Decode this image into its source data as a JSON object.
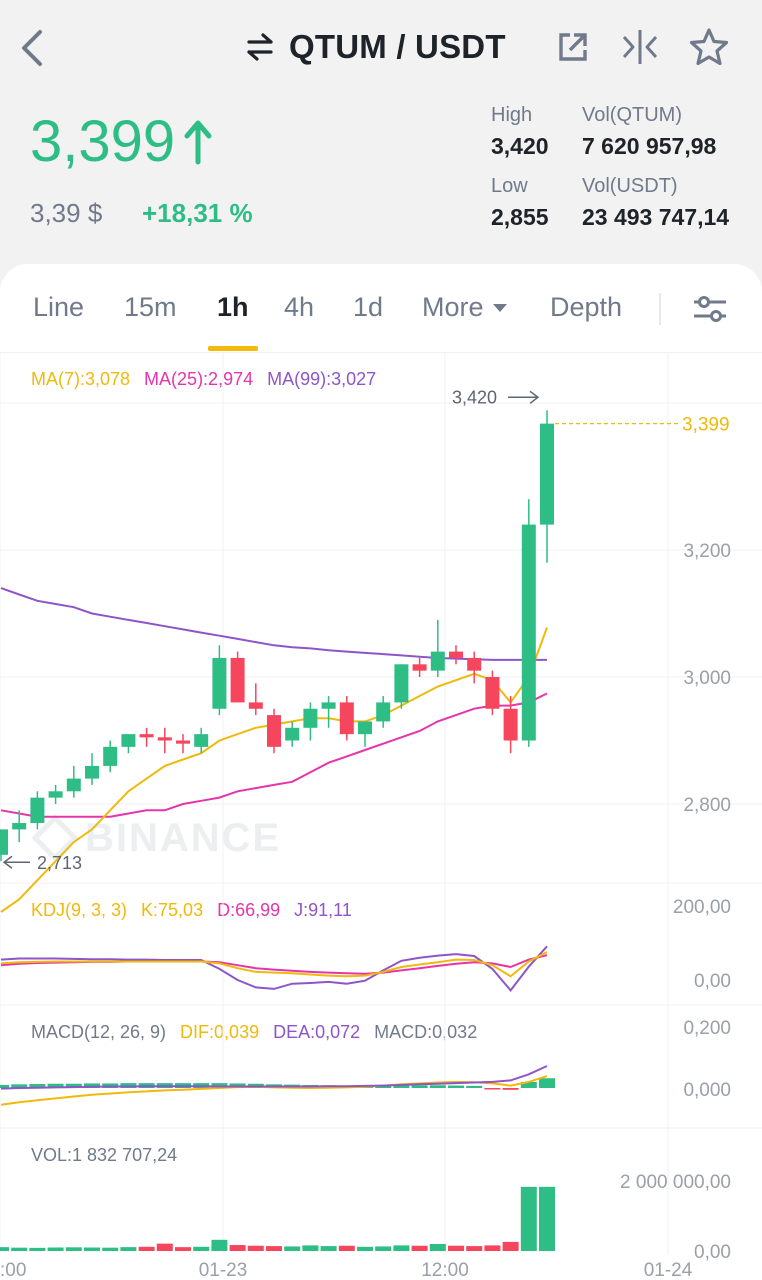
{
  "header": {
    "title": "QTUM / USDT",
    "swap_icon": "swap-arrows-icon",
    "back_icon": "chevron-left-icon",
    "share_icon": "external-link-icon",
    "compare_icon": "split-compare-icon",
    "favorite_icon": "star-outline-icon"
  },
  "ticker": {
    "price": "3,399",
    "direction_icon": "arrow-up-icon",
    "fiat_price": "3,39 $",
    "change_pct": "+18,31 %",
    "high_label": "High",
    "high": "3,420",
    "low_label": "Low",
    "low": "2,855",
    "vol_base_label": "Vol(QTUM)",
    "vol_base": "7 620 957,98",
    "vol_quote_label": "Vol(USDT)",
    "vol_quote": "23 493 747,14"
  },
  "tabs": [
    {
      "label": "Line"
    },
    {
      "label": "15m"
    },
    {
      "label": "1h",
      "active": true
    },
    {
      "label": "4h"
    },
    {
      "label": "1d"
    },
    {
      "label": "More"
    },
    {
      "label": "Depth"
    }
  ],
  "settings_icon": "sliders-icon",
  "colors": {
    "up": "#2ebd85",
    "down": "#f6465d",
    "ma7": "#f0b90b",
    "ma25": "#e535ab",
    "ma99": "#8e55c9",
    "accent": "#f0b90b"
  },
  "main_chart": {
    "legend": {
      "ma7": "MA(7):3,078",
      "ma25": "MA(25):2,974",
      "ma99": "MA(99):3,027"
    },
    "y_ticks": [
      "3,200",
      "3,000",
      "2,800"
    ],
    "y_tick_values": [
      3.2,
      3.0,
      2.8
    ],
    "current_price_label": "3,399",
    "current_price_value": 3.399,
    "high_marker": "3,420",
    "high_marker_value": 3.42,
    "low_marker": "2,713",
    "low_marker_value": 2.713,
    "watermark": "BINANCE"
  },
  "kdj": {
    "label": "KDJ(9, 3, 3)",
    "k": "K:75,03",
    "d": "D:66,99",
    "j": "J:91,11",
    "y_ticks": [
      "200,00",
      "0,00"
    ]
  },
  "macd": {
    "label": "MACD(12, 26, 9)",
    "dif": "DIF:0,039",
    "dea": "DEA:0,072",
    "macd": "MACD:0,032",
    "y_ticks": [
      "0,200",
      "0,000"
    ]
  },
  "volume": {
    "label": "VOL:1 832 707,24",
    "y_ticks": [
      "2 000 000,00",
      "0,00"
    ]
  },
  "x_ticks": [
    ":00",
    "01-23",
    "12:00",
    "01-24"
  ],
  "chart_data": {
    "type": "candlestick",
    "interval": "1h",
    "note_series": "approximate OHLC read off chart",
    "candles": [
      {
        "o": 2.72,
        "h": 2.76,
        "l": 2.71,
        "c": 2.76
      },
      {
        "o": 2.76,
        "h": 2.79,
        "l": 2.74,
        "c": 2.77
      },
      {
        "o": 2.77,
        "h": 2.82,
        "l": 2.76,
        "c": 2.81
      },
      {
        "o": 2.81,
        "h": 2.83,
        "l": 2.8,
        "c": 2.82
      },
      {
        "o": 2.82,
        "h": 2.86,
        "l": 2.81,
        "c": 2.84
      },
      {
        "o": 2.84,
        "h": 2.88,
        "l": 2.83,
        "c": 2.86
      },
      {
        "o": 2.86,
        "h": 2.9,
        "l": 2.85,
        "c": 2.89
      },
      {
        "o": 2.89,
        "h": 2.91,
        "l": 2.88,
        "c": 2.91
      },
      {
        "o": 2.91,
        "h": 2.92,
        "l": 2.89,
        "c": 2.905
      },
      {
        "o": 2.905,
        "h": 2.92,
        "l": 2.88,
        "c": 2.9
      },
      {
        "o": 2.9,
        "h": 2.91,
        "l": 2.88,
        "c": 2.895
      },
      {
        "o": 2.89,
        "h": 2.92,
        "l": 2.88,
        "c": 2.91
      },
      {
        "o": 2.95,
        "h": 3.05,
        "l": 2.94,
        "c": 3.03
      },
      {
        "o": 3.03,
        "h": 3.04,
        "l": 2.96,
        "c": 2.96
      },
      {
        "o": 2.96,
        "h": 2.99,
        "l": 2.94,
        "c": 2.95
      },
      {
        "o": 2.94,
        "h": 2.95,
        "l": 2.88,
        "c": 2.89
      },
      {
        "o": 2.9,
        "h": 2.93,
        "l": 2.89,
        "c": 2.92
      },
      {
        "o": 2.92,
        "h": 2.96,
        "l": 2.9,
        "c": 2.95
      },
      {
        "o": 2.95,
        "h": 2.97,
        "l": 2.92,
        "c": 2.96
      },
      {
        "o": 2.96,
        "h": 2.97,
        "l": 2.9,
        "c": 2.91
      },
      {
        "o": 2.91,
        "h": 2.93,
        "l": 2.89,
        "c": 2.93
      },
      {
        "o": 2.93,
        "h": 2.97,
        "l": 2.92,
        "c": 2.96
      },
      {
        "o": 2.96,
        "h": 3.02,
        "l": 2.95,
        "c": 3.02
      },
      {
        "o": 3.02,
        "h": 3.03,
        "l": 3.0,
        "c": 3.01
      },
      {
        "o": 3.01,
        "h": 3.09,
        "l": 3.0,
        "c": 3.04
      },
      {
        "o": 3.04,
        "h": 3.05,
        "l": 3.02,
        "c": 3.03
      },
      {
        "o": 3.03,
        "h": 3.04,
        "l": 2.99,
        "c": 3.01
      },
      {
        "o": 3.0,
        "h": 3.01,
        "l": 2.94,
        "c": 2.95
      },
      {
        "o": 2.95,
        "h": 2.97,
        "l": 2.88,
        "c": 2.9
      },
      {
        "o": 2.9,
        "h": 3.28,
        "l": 2.89,
        "c": 3.24
      },
      {
        "o": 3.24,
        "h": 3.42,
        "l": 3.18,
        "c": 3.399
      }
    ],
    "ma7": [
      2.63,
      2.65,
      2.68,
      2.71,
      2.74,
      2.76,
      2.79,
      2.82,
      2.84,
      2.86,
      2.87,
      2.88,
      2.9,
      2.91,
      2.92,
      2.925,
      2.93,
      2.935,
      2.935,
      2.93,
      2.93,
      2.94,
      2.955,
      2.97,
      2.985,
      2.995,
      3.005,
      2.995,
      2.96,
      3.0,
      3.078
    ],
    "ma25": [
      2.79,
      2.785,
      2.78,
      2.78,
      2.78,
      2.78,
      2.78,
      2.785,
      2.79,
      2.79,
      2.8,
      2.805,
      2.81,
      2.82,
      2.825,
      2.83,
      2.835,
      2.85,
      2.865,
      2.875,
      2.885,
      2.895,
      2.905,
      2.915,
      2.93,
      2.94,
      2.95,
      2.955,
      2.955,
      2.96,
      2.974
    ],
    "ma99": [
      3.14,
      3.13,
      3.12,
      3.115,
      3.11,
      3.1,
      3.095,
      3.09,
      3.085,
      3.08,
      3.075,
      3.07,
      3.065,
      3.06,
      3.055,
      3.05,
      3.047,
      3.045,
      3.042,
      3.04,
      3.038,
      3.036,
      3.034,
      3.032,
      3.03,
      3.029,
      3.028,
      3.027,
      3.027,
      3.027,
      3.027
    ],
    "kdj_k": [
      45,
      48,
      49,
      50,
      50,
      50,
      50,
      50,
      50,
      50,
      50,
      50,
      45,
      32,
      22,
      20,
      18,
      15,
      12,
      10,
      12,
      22,
      35,
      42,
      48,
      55,
      54,
      40,
      10,
      50,
      75.03
    ],
    "kdj_d": [
      40,
      44,
      46,
      47,
      48,
      49,
      49,
      50,
      50,
      50,
      50,
      50,
      48,
      40,
      32,
      28,
      25,
      22,
      20,
      18,
      17,
      20,
      26,
      32,
      38,
      44,
      48,
      45,
      35,
      55,
      66.99
    ],
    "kdj_j": [
      55,
      58,
      58,
      58,
      57,
      56,
      56,
      55,
      55,
      54,
      54,
      54,
      30,
      0,
      -20,
      -24,
      -10,
      -8,
      -5,
      -10,
      -2,
      26,
      52,
      60,
      66,
      70,
      65,
      30,
      -28,
      36,
      91.11
    ],
    "macd_dif": [
      -0.055,
      -0.047,
      -0.04,
      -0.034,
      -0.028,
      -0.022,
      -0.018,
      -0.014,
      -0.011,
      -0.008,
      -0.006,
      -0.003,
      0.0,
      0.003,
      0.004,
      0.002,
      0.001,
      0.0,
      0.001,
      0.002,
      0.004,
      0.008,
      0.012,
      0.015,
      0.018,
      0.02,
      0.019,
      0.015,
      0.008,
      0.02,
      0.039
    ],
    "macd_dea": [
      -0.002,
      0.0,
      0.001,
      0.002,
      0.003,
      0.004,
      0.005,
      0.005,
      0.006,
      0.006,
      0.006,
      0.006,
      0.005,
      0.005,
      0.005,
      0.005,
      0.005,
      0.005,
      0.006,
      0.006,
      0.007,
      0.008,
      0.01,
      0.012,
      0.014,
      0.016,
      0.018,
      0.02,
      0.025,
      0.045,
      0.072
    ],
    "macd_hist": [
      0.01,
      0.012,
      0.013,
      0.014,
      0.014,
      0.015,
      0.015,
      0.016,
      0.016,
      0.016,
      0.016,
      0.016,
      0.016,
      0.015,
      0.014,
      0.012,
      0.011,
      0.01,
      0.009,
      0.008,
      0.008,
      0.008,
      0.008,
      0.009,
      0.009,
      0.008,
      0.007,
      -0.004,
      -0.006,
      0.02,
      0.032
    ],
    "macd_hist_up": [
      true,
      true,
      true,
      true,
      true,
      true,
      true,
      true,
      true,
      true,
      true,
      true,
      true,
      true,
      true,
      true,
      true,
      true,
      true,
      true,
      true,
      true,
      true,
      true,
      true,
      true,
      true,
      false,
      false,
      true,
      true
    ],
    "volume": [
      110000,
      95000,
      90000,
      100000,
      105000,
      100000,
      95000,
      110000,
      120000,
      210000,
      110000,
      120000,
      320000,
      170000,
      150000,
      140000,
      130000,
      160000,
      140000,
      150000,
      120000,
      130000,
      160000,
      150000,
      200000,
      150000,
      140000,
      160000,
      260000,
      1832707.24,
      1832707.24
    ]
  }
}
